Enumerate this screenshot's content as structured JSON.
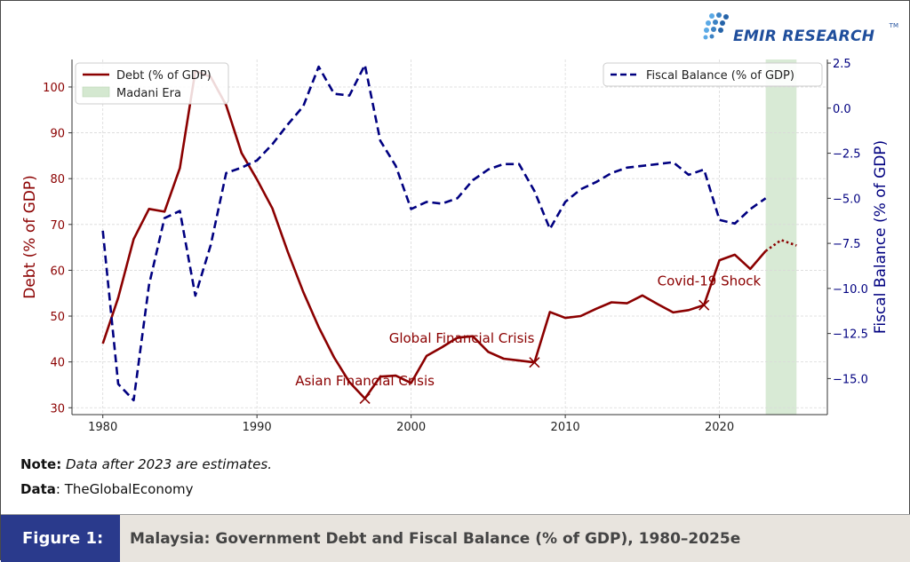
{
  "logo": {
    "text": "EMIR RESEARCH",
    "tm": "TM"
  },
  "note": {
    "label": "Note:",
    "text": "Data after 2023 are estimates."
  },
  "data_source": {
    "label": "Data",
    "text": ": TheGlobalEconomy"
  },
  "figure": {
    "label": "Figure 1:",
    "title": "Malaysia: Government Debt and Fiscal Balance (% of GDP), 1980–2025e"
  },
  "colors": {
    "debt": "#8b0000",
    "fiscal": "#000080",
    "madani": "#d4e8d0",
    "footer_label_bg": "#2a3a8c"
  },
  "chart_data": {
    "type": "line",
    "xlim": [
      1978,
      2027
    ],
    "x_ticks": [
      "1980",
      "1990",
      "2000",
      "2010",
      "2020"
    ],
    "y_left": {
      "label": "Debt (% of GDP)",
      "lim": [
        28.5,
        106
      ],
      "ticks": [
        "30",
        "40",
        "50",
        "60",
        "70",
        "80",
        "90",
        "100"
      ]
    },
    "y_right": {
      "label": "Fiscal Balance (% of GDP)",
      "lim": [
        -17,
        2.7
      ],
      "ticks": [
        "2.5",
        "0.0",
        "−2.5",
        "−5.0",
        "−7.5",
        "−10.0",
        "−12.5",
        "−15.0"
      ]
    },
    "grid": true,
    "series": [
      {
        "name": "Debt (% of GDP)",
        "axis": "left",
        "style": "solid",
        "x": [
          1980,
          1981,
          1982,
          1983,
          1984,
          1985,
          1986,
          1987,
          1988,
          1989,
          1990,
          1991,
          1992,
          1993,
          1994,
          1995,
          1996,
          1997,
          1998,
          1999,
          2000,
          2001,
          2002,
          2003,
          2004,
          2005,
          2006,
          2007,
          2008,
          2009,
          2010,
          2011,
          2012,
          2013,
          2014,
          2015,
          2016,
          2017,
          2018,
          2019,
          2020,
          2021,
          2022,
          2023
        ],
        "values": [
          44,
          54,
          66.8,
          73.4,
          72.8,
          82.3,
          103.5,
          102.2,
          96,
          85.6,
          79.8,
          73.5,
          64,
          55.3,
          47.6,
          41,
          35.6,
          32,
          36.8,
          37,
          35.4,
          41.3,
          43.2,
          45.3,
          45.6,
          42.2,
          40.7,
          40.3,
          39.9,
          50.9,
          49.6,
          50,
          51.6,
          53,
          52.8,
          54.5,
          52.6,
          50.8,
          51.3,
          52.4,
          62.2,
          63.4,
          60.3,
          64.2
        ]
      },
      {
        "name": "Debt estimate",
        "axis": "left",
        "style": "dotted",
        "x": [
          2023,
          2024,
          2025
        ],
        "values": [
          64.2,
          66.6,
          65.4
        ]
      },
      {
        "name": "Fiscal Balance (% of GDP)",
        "axis": "right",
        "style": "dashed",
        "x": [
          1980,
          1981,
          1982,
          1983,
          1984,
          1985,
          1986,
          1987,
          1988,
          1989,
          1990,
          1991,
          1992,
          1993,
          1994,
          1995,
          1996,
          1997,
          1998,
          1999,
          2000,
          2001,
          2002,
          2003,
          2004,
          2005,
          2006,
          2007,
          2008,
          2009,
          2010,
          2011,
          2012,
          2013,
          2014,
          2015,
          2016,
          2017,
          2018,
          2019,
          2020,
          2021,
          2022,
          2023
        ],
        "values": [
          -6.8,
          -15.3,
          -16.2,
          -9.8,
          -6.1,
          -5.7,
          -10.4,
          -7.6,
          -3.6,
          -3.3,
          -2.9,
          -2,
          -0.9,
          0.1,
          2.3,
          0.8,
          0.7,
          2.4,
          -1.8,
          -3.2,
          -5.6,
          -5.2,
          -5.3,
          -5,
          -4,
          -3.4,
          -3.1,
          -3.1,
          -4.6,
          -6.7,
          -5.2,
          -4.5,
          -4.1,
          -3.6,
          -3.3,
          -3.2,
          -3.1,
          -3,
          -3.7,
          -3.4,
          -6.2,
          -6.4,
          -5.6,
          -5
        ]
      }
    ],
    "annotations": [
      {
        "text": "Asian Financial Crisis",
        "x": 1997,
        "y": 32,
        "axis": "left",
        "marker": "x"
      },
      {
        "text": "Global Financial Crisis",
        "x": 2008,
        "y": 39.9,
        "axis": "left",
        "marker": "x"
      },
      {
        "text": "Covid-19 Shock",
        "x": 2019,
        "y": 52.4,
        "axis": "left",
        "marker": "x"
      }
    ],
    "shaded_region": {
      "name": "Madani Era",
      "x": [
        2023,
        2025
      ]
    },
    "legend_left": {
      "placement": "top-left",
      "entries": [
        "Debt (% of GDP)",
        "Madani Era"
      ]
    },
    "legend_right": {
      "placement": "top-right",
      "entries": [
        "Fiscal Balance (% of GDP)"
      ]
    }
  }
}
